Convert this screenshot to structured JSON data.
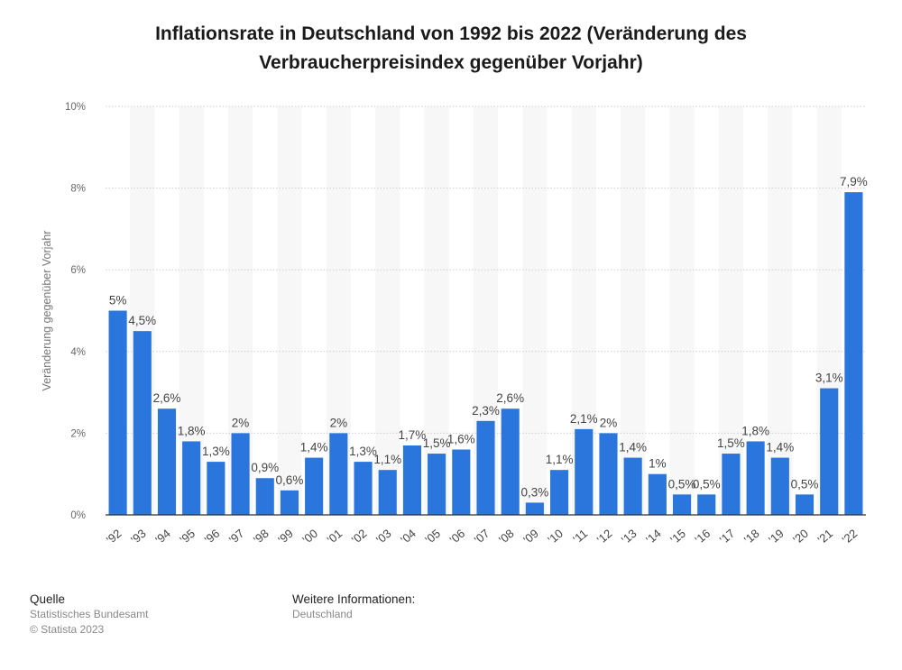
{
  "chart_data": {
    "type": "bar",
    "title": "Inflationsrate in Deutschland von 1992 bis 2022 (Veränderung des Verbraucherpreisindex gegenüber Vorjahr)",
    "ylabel": "Veränderung gegenüber Vorjahr",
    "xlabel": "",
    "ylim": [
      0,
      10
    ],
    "yticks": [
      {
        "value": 0,
        "label": "0%"
      },
      {
        "value": 2,
        "label": "2%"
      },
      {
        "value": 4,
        "label": "4%"
      },
      {
        "value": 6,
        "label": "6%"
      },
      {
        "value": 8,
        "label": "8%"
      },
      {
        "value": 10,
        "label": "10%"
      }
    ],
    "grid": true,
    "bar_color": "#2a76dd",
    "categories": [
      "'92",
      "'93",
      "'94",
      "'95",
      "'96",
      "'97",
      "'98",
      "'99",
      "'00",
      "'01",
      "'02",
      "'03",
      "'04",
      "'05",
      "'06",
      "'07",
      "'08",
      "'09",
      "'10",
      "'11",
      "'12",
      "'13",
      "'14",
      "'15",
      "'16",
      "'17",
      "'18",
      "'19",
      "'20",
      "'21",
      "'22"
    ],
    "values": [
      5,
      4.5,
      2.6,
      1.8,
      1.3,
      2,
      0.9,
      0.6,
      1.4,
      2,
      1.3,
      1.1,
      1.7,
      1.5,
      1.6,
      2.3,
      2.6,
      0.3,
      1.1,
      2.1,
      2,
      1.4,
      1,
      0.5,
      0.5,
      1.5,
      1.8,
      1.4,
      0.5,
      3.1,
      7.9
    ],
    "value_labels": [
      "5%",
      "4,5%",
      "2,6%",
      "1,8%",
      "1,3%",
      "2%",
      "0,9%",
      "0,6%",
      "1,4%",
      "2%",
      "1,3%",
      "1,1%",
      "1,7%",
      "1,5%",
      "1,6%",
      "2,3%",
      "2,6%",
      "0,3%",
      "1,1%",
      "2,1%",
      "2%",
      "1,4%",
      "1%",
      "0,5%",
      "0,5%",
      "1,5%",
      "1,8%",
      "1,4%",
      "0,5%",
      "3,1%",
      "7,9%"
    ]
  },
  "footer": {
    "source_heading": "Quelle",
    "source_lines": [
      "Statistisches Bundesamt",
      "© Statista 2023"
    ],
    "info_heading": "Weitere Informationen:",
    "info_lines": [
      "Deutschland"
    ]
  }
}
